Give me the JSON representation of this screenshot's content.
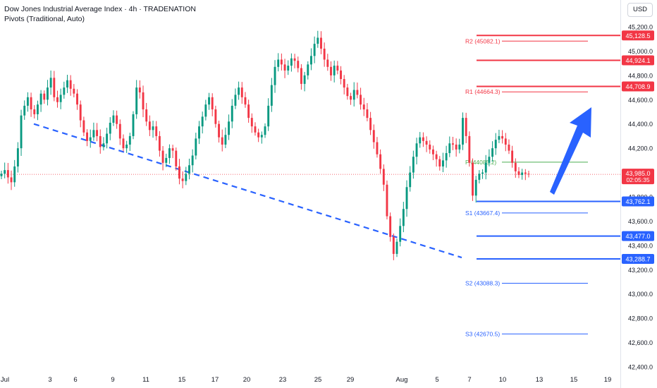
{
  "header": {
    "title": "Dow Jones Industrial Average Index · 4h · TRADENATION",
    "indicator": "Pivots (Traditional, Auto)",
    "currency": "USD"
  },
  "chart_data": {
    "type": "candlestick",
    "ylim": [
      42260,
      45300
    ],
    "y_ticks": [
      {
        "value": 45200,
        "label": "45,200.0"
      },
      {
        "value": 45000,
        "label": "45,000.0"
      },
      {
        "value": 44800,
        "label": "44,800.0"
      },
      {
        "value": 44600,
        "label": "44,600.0"
      },
      {
        "value": 44400,
        "label": "44,400.0"
      },
      {
        "value": 44200,
        "label": "44,200.0"
      },
      {
        "value": 43800,
        "label": "43,800.0"
      },
      {
        "value": 43600,
        "label": "43,600.0"
      },
      {
        "value": 43400,
        "label": "43,400.0"
      },
      {
        "value": 43200,
        "label": "43,200.0"
      },
      {
        "value": 43000,
        "label": "43,000.0"
      },
      {
        "value": 42800,
        "label": "42,800.0"
      },
      {
        "value": 42600,
        "label": "42,600.0"
      },
      {
        "value": 42400,
        "label": "42,400.0"
      }
    ],
    "x_ticks": [
      "Jul",
      "3",
      "6",
      "9",
      "11",
      "15",
      "17",
      "20",
      "23",
      "25",
      "29",
      "Aug",
      "5",
      "7",
      "10",
      "13",
      "15",
      "19"
    ],
    "price_series": [
      43990,
      44020,
      43960,
      43920,
      44050,
      44200,
      44470,
      44550,
      44620,
      44520,
      44480,
      44560,
      44650,
      44600,
      44700,
      44780,
      44620,
      44580,
      44640,
      44700,
      44760,
      44690,
      44650,
      44560,
      44430,
      44330,
      44260,
      44290,
      44350,
      44300,
      44210,
      44240,
      44320,
      44410,
      44470,
      44400,
      44280,
      44200,
      44230,
      44300,
      44480,
      44700,
      44660,
      44520,
      44420,
      44350,
      44380,
      44300,
      44180,
      44080,
      44120,
      44200,
      44180,
      44050,
      43950,
      43930,
      43990,
      44060,
      44140,
      44280,
      44380,
      44460,
      44560,
      44620,
      44520,
      44400,
      44290,
      44230,
      44310,
      44420,
      44550,
      44640,
      44700,
      44620,
      44560,
      44450,
      44380,
      44330,
      44290,
      44310,
      44380,
      44550,
      44720,
      44870,
      44930,
      44890,
      44840,
      44880,
      44940,
      44920,
      44860,
      44730,
      44800,
      44890,
      44960,
      45060,
      45110,
      45020,
      44930,
      44870,
      44800,
      44880,
      44840,
      44770,
      44700,
      44630,
      44600,
      44680,
      44640,
      44560,
      44520,
      44450,
      44350,
      44250,
      44150,
      44030,
      43900,
      43640,
      43470,
      43330,
      43430,
      43560,
      43700,
      43880,
      44000,
      44130,
      44240,
      44290,
      44260,
      44230,
      44190,
      44150,
      44110,
      44050,
      44100,
      44160,
      44240,
      44230,
      44190,
      44230,
      44450,
      44300,
      44080,
      43810,
      43940,
      43990,
      44000,
      44080,
      44130,
      44200,
      44270,
      44300,
      44280,
      44230,
      44180,
      44080,
      44010,
      43980,
      44000,
      43990,
      43985
    ],
    "last_price": {
      "value": 43985,
      "label": "43,985.0",
      "countdown": "02:05:35"
    },
    "pivots": [
      {
        "name": "R2",
        "label": "R2 (45082.1)",
        "value": 45082.1
      },
      {
        "name": "R1",
        "label": "R1 (44664.3)",
        "value": 44664.3
      },
      {
        "name": "P",
        "label": "P (44085.2)",
        "value": 44085.2
      },
      {
        "name": "S1",
        "label": "S1 (43667.4)",
        "value": 43667.4
      },
      {
        "name": "S2",
        "label": "S2 (43088.3)",
        "value": 43088.3
      },
      {
        "name": "S3",
        "label": "S3 (42670.5)",
        "value": 42670.5
      }
    ],
    "resistance_levels": [
      {
        "value": 45128.5,
        "label": "45,128.5"
      },
      {
        "value": 44924.1,
        "label": "44,924.1"
      },
      {
        "value": 44708.9,
        "label": "44,708.9"
      }
    ],
    "support_levels": [
      {
        "value": 43762.1,
        "label": "43,762.1"
      },
      {
        "value": 43477.0,
        "label": "43,477.0"
      },
      {
        "value": 43288.7,
        "label": "43,288.7"
      }
    ],
    "trendline": {
      "style": "dashed",
      "from": 44400,
      "to": 43300
    },
    "annotation": "up arrow",
    "colors": {
      "up": "#089981",
      "down": "#f23645",
      "support": "#2962ff",
      "resistance": "#f23645",
      "pivot": "#4caf50",
      "trendline": "#2962ff",
      "arrow": "#2962ff"
    }
  }
}
